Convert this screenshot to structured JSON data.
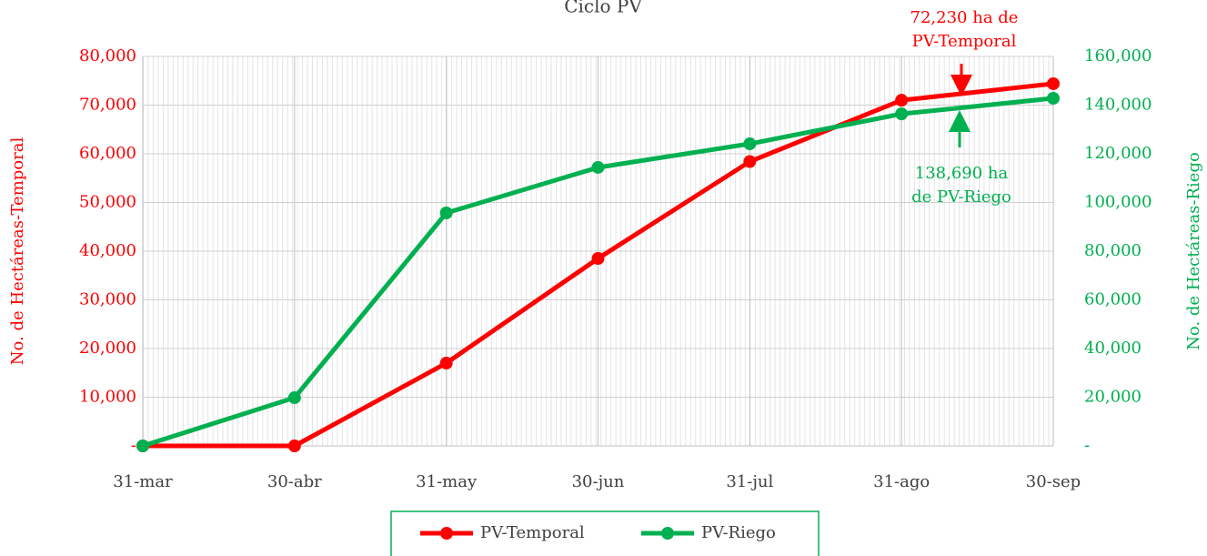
{
  "chart_data": {
    "type": "line",
    "title": "Ciclo PV",
    "categories": [
      "31-mar",
      "30-abr",
      "31-may",
      "30-jun",
      "31-jul",
      "31-ago",
      "30-sep"
    ],
    "series": [
      {
        "name": "PV-Temporal",
        "color": "#ff0000",
        "values": [
          0,
          0,
          17000,
          38500,
          58400,
          71000,
          74400
        ]
      },
      {
        "name": "PV-Riego",
        "color": "#00b050",
        "axis": "y2",
        "values": [
          0,
          19800,
          95700,
          114400,
          124100,
          136400,
          142800
        ]
      }
    ],
    "ylabel": "No. de Hectáreas-Temporal",
    "y2label": "No. de Hectáreas-Riego",
    "ylim": [
      0,
      80000
    ],
    "yticks": [
      {
        "value": 0,
        "label": "-"
      },
      {
        "value": 10000,
        "label": "10,000"
      },
      {
        "value": 20000,
        "label": "20,000"
      },
      {
        "value": 30000,
        "label": "30,000"
      },
      {
        "value": 40000,
        "label": "40,000"
      },
      {
        "value": 50000,
        "label": "50,000"
      },
      {
        "value": 60000,
        "label": "60,000"
      },
      {
        "value": 70000,
        "label": "70,000"
      },
      {
        "value": 80000,
        "label": "80,000"
      }
    ],
    "y2lim": [
      0,
      160000
    ],
    "y2ticks": [
      {
        "value": 0,
        "label": "-"
      },
      {
        "value": 20000,
        "label": "20,000"
      },
      {
        "value": 40000,
        "label": "40,000"
      },
      {
        "value": 60000,
        "label": "60,000"
      },
      {
        "value": 80000,
        "label": "80,000"
      },
      {
        "value": 100000,
        "label": "100,000"
      },
      {
        "value": 120000,
        "label": "120,000"
      },
      {
        "value": 140000,
        "label": "140,000"
      },
      {
        "value": 160000,
        "label": "160,000"
      }
    ],
    "grid": true,
    "legend": "bottom",
    "annotations": [
      {
        "lines": [
          "72,230 ha de",
          "PV-Temporal"
        ],
        "color": "#ff0000"
      },
      {
        "lines": [
          "138,690 ha",
          "de PV-Riego"
        ],
        "color": "#00b050"
      }
    ]
  }
}
